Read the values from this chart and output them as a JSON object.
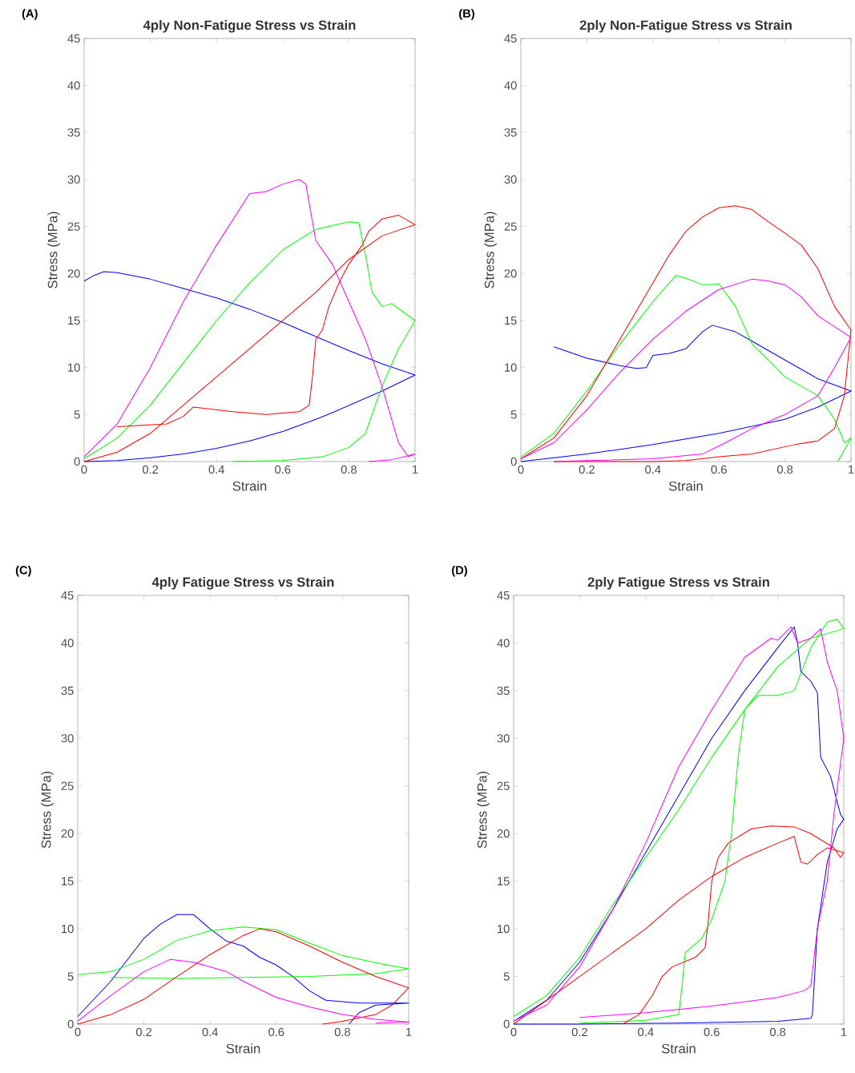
{
  "chart_data": [
    {
      "type": "line",
      "title": "4ply Non-Fatigue Stress vs Strain",
      "xlabel": "Strain",
      "ylabel": "Stress (MPa)",
      "annotations": [
        "(A)"
      ],
      "xlim": [
        0,
        1
      ],
      "ylim": [
        0,
        45
      ],
      "xticks": [
        0,
        0.2,
        0.4,
        0.6,
        0.8,
        1
      ],
      "yticks": [
        0,
        5,
        10,
        15,
        20,
        25,
        30,
        35,
        40,
        45
      ],
      "line_style": "solid",
      "series": [
        {
          "color": "#0000ff",
          "x": [
            0,
            0.03,
            0.06,
            0.1,
            0.2,
            0.3,
            0.4,
            0.5,
            0.6,
            0.72,
            0.8,
            0.9,
            1,
            0.9,
            0.75,
            0.7,
            0.6,
            0.5,
            0.4,
            0.3,
            0.2,
            0.1,
            0
          ],
          "values": [
            19.2,
            19.8,
            20.2,
            20.1,
            19.4,
            18.4,
            17.4,
            16.2,
            14.8,
            13,
            11.8,
            10.4,
            9.2,
            7.5,
            5.2,
            4.5,
            3.2,
            2.2,
            1.4,
            0.8,
            0.4,
            0.1,
            0
          ]
        },
        {
          "color": "#00ff00",
          "x": [
            0,
            0.1,
            0.2,
            0.3,
            0.4,
            0.5,
            0.6,
            0.7,
            0.8,
            0.83,
            0.85,
            0.87,
            0.9,
            0.93,
            0.96,
            1,
            0.95,
            0.9,
            0.85,
            0.8,
            0.72,
            0.6,
            0.45
          ],
          "values": [
            0.3,
            2.5,
            6,
            10.5,
            15,
            19,
            22.5,
            24.7,
            25.5,
            25.4,
            22,
            18,
            16.5,
            16.8,
            16,
            15,
            12,
            8,
            3,
            1.5,
            0.5,
            0.1,
            0
          ]
        },
        {
          "color": "#ff0000",
          "x": [
            0,
            0.1,
            0.2,
            0.35,
            0.4,
            0.5,
            0.6,
            0.7,
            0.8,
            0.9,
            1,
            0.95,
            0.9,
            0.86,
            0.84,
            0.8,
            0.77,
            0.74,
            0.72,
            0.7,
            0.69,
            0.68,
            0.65,
            0.55,
            0.45,
            0.33,
            0.3,
            0.25,
            0.1
          ],
          "values": [
            0,
            1,
            3,
            7.5,
            9,
            12,
            15,
            18,
            21.5,
            24,
            25.2,
            26.2,
            25.8,
            24.5,
            23,
            21,
            19,
            16.5,
            14,
            13,
            9,
            6,
            5.3,
            5,
            5.3,
            5.8,
            4.8,
            4,
            3.7
          ]
        },
        {
          "color": "#ff00ff",
          "x": [
            0,
            0.1,
            0.2,
            0.3,
            0.4,
            0.5,
            0.55,
            0.6,
            0.65,
            0.67,
            0.7,
            0.75,
            0.8,
            0.85,
            0.9,
            0.95,
            0.98,
            1,
            0.93,
            0.86
          ],
          "values": [
            0.5,
            4,
            10,
            17,
            23,
            28.5,
            28.7,
            29.5,
            30,
            29.5,
            23.5,
            21,
            17,
            13,
            8,
            2,
            0.5,
            0.8,
            0.2,
            0
          ]
        }
      ]
    },
    {
      "type": "line",
      "title": "2ply Non-Fatigue Stress vs Strain",
      "xlabel": "Strain",
      "ylabel": "Stress (MPa)",
      "annotations": [
        "(B)"
      ],
      "xlim": [
        0,
        1
      ],
      "ylim": [
        0,
        45
      ],
      "xticks": [
        0,
        0.2,
        0.4,
        0.6,
        0.8,
        1
      ],
      "yticks": [
        0,
        5,
        10,
        15,
        20,
        25,
        30,
        35,
        40,
        45
      ],
      "line_style": "solid",
      "series": [
        {
          "color": "#0000ff",
          "x": [
            0.1,
            0.2,
            0.3,
            0.35,
            0.38,
            0.4,
            0.45,
            0.5,
            0.55,
            0.58,
            0.65,
            0.7,
            0.75,
            0.9,
            1,
            0.9,
            0.8,
            0.6,
            0.4,
            0.2,
            0
          ],
          "values": [
            12.2,
            11,
            10.2,
            9.9,
            10,
            11.3,
            11.5,
            12,
            13.8,
            14.5,
            13.8,
            12.8,
            11.8,
            8.8,
            7.5,
            5.8,
            4.5,
            3,
            1.8,
            0.8,
            0
          ]
        },
        {
          "color": "#00ff00",
          "x": [
            0,
            0.1,
            0.2,
            0.3,
            0.4,
            0.47,
            0.5,
            0.55,
            0.6,
            0.65,
            0.7,
            0.75,
            0.8,
            0.85,
            0.9,
            0.95,
            0.98,
            1,
            0.96
          ],
          "values": [
            0.5,
            3,
            7.5,
            12.5,
            17,
            19.8,
            19.5,
            18.8,
            18.9,
            16.5,
            12.5,
            10.8,
            9,
            8,
            7,
            4.5,
            2,
            2.5,
            0
          ]
        },
        {
          "color": "#ff0000",
          "x": [
            0,
            0.1,
            0.2,
            0.3,
            0.4,
            0.45,
            0.5,
            0.55,
            0.6,
            0.65,
            0.7,
            0.75,
            0.8,
            0.85,
            0.9,
            0.95,
            1,
            0.98,
            0.95,
            0.9,
            0.83,
            0.7,
            0.6,
            0.5,
            0.4,
            0.1
          ],
          "values": [
            0.3,
            2.5,
            7,
            13,
            19,
            22,
            24.5,
            26,
            27,
            27.2,
            26.8,
            25.5,
            24.3,
            23,
            20.5,
            16.5,
            14,
            7,
            3.5,
            2.2,
            1.8,
            0.8,
            0.5,
            0.1,
            0,
            0
          ]
        },
        {
          "color": "#ff00ff",
          "x": [
            0,
            0.1,
            0.2,
            0.3,
            0.4,
            0.5,
            0.6,
            0.7,
            0.75,
            0.8,
            0.85,
            0.9,
            1,
            0.95,
            0.9,
            0.8,
            0.7,
            0.62,
            0.55,
            0.4,
            0.2,
            0.1
          ],
          "values": [
            0.3,
            2,
            5.5,
            9.5,
            13,
            16,
            18.3,
            19.4,
            19.2,
            18.8,
            17.5,
            15.5,
            13.2,
            10,
            7,
            5,
            3.5,
            2,
            0.8,
            0.3,
            0.1,
            0
          ]
        }
      ]
    },
    {
      "type": "line",
      "title": "4ply Fatigue Stress vs Strain",
      "xlabel": "Strain",
      "ylabel": "Stress (MPa)",
      "annotations": [
        "(C)"
      ],
      "xlim": [
        0,
        1
      ],
      "ylim": [
        0,
        45
      ],
      "xticks": [
        0,
        0.2,
        0.4,
        0.6,
        0.8,
        1
      ],
      "yticks": [
        0,
        5,
        10,
        15,
        20,
        25,
        30,
        35,
        40,
        45
      ],
      "line_style": "solid",
      "series": [
        {
          "color": "#0000ff",
          "x": [
            0,
            0.1,
            0.2,
            0.25,
            0.3,
            0.35,
            0.4,
            0.45,
            0.5,
            0.55,
            0.6,
            0.65,
            0.7,
            0.75,
            0.85,
            1,
            0.9,
            0.85,
            0.82
          ],
          "values": [
            0.8,
            4.5,
            9,
            10.5,
            11.5,
            11.5,
            10,
            8.7,
            8.2,
            7,
            6.2,
            5,
            3.5,
            2.5,
            2.2,
            2.2,
            2,
            1.2,
            0
          ]
        },
        {
          "color": "#00ff00",
          "x": [
            0,
            0.1,
            0.2,
            0.3,
            0.4,
            0.5,
            0.6,
            0.7,
            0.8,
            0.92,
            1,
            0.9,
            0.7,
            0.5,
            0.3,
            0.1
          ],
          "values": [
            5.2,
            5.5,
            6.8,
            8.8,
            9.8,
            10.2,
            9.9,
            8.5,
            7.2,
            6.3,
            5.8,
            5.3,
            5,
            4.9,
            4.8,
            4.9
          ]
        },
        {
          "color": "#ff0000",
          "x": [
            0,
            0.1,
            0.2,
            0.3,
            0.4,
            0.5,
            0.55,
            0.6,
            0.7,
            0.8,
            0.9,
            1,
            0.95,
            0.9,
            0.8,
            0.74
          ],
          "values": [
            0,
            1,
            2.6,
            5,
            7.3,
            9.3,
            10,
            9.7,
            8.2,
            6.5,
            5,
            3.8,
            2,
            1,
            0.3,
            0
          ]
        },
        {
          "color": "#ff00ff",
          "x": [
            0,
            0.1,
            0.2,
            0.28,
            0.35,
            0.45,
            0.5,
            0.6,
            0.7,
            0.8,
            0.9,
            1,
            0.9
          ],
          "values": [
            0.3,
            3,
            5.5,
            6.8,
            6.5,
            5.5,
            4.5,
            2.8,
            1.8,
            1,
            0.5,
            0.2,
            0.1
          ]
        }
      ]
    },
    {
      "type": "line",
      "title": "2ply Fatigue Stress vs Strain",
      "xlabel": "Strain",
      "ylabel": "Stress (MPa)",
      "annotations": [
        "(D)"
      ],
      "xlim": [
        0,
        1
      ],
      "ylim": [
        0,
        45
      ],
      "xticks": [
        0,
        0.2,
        0.4,
        0.6,
        0.8,
        1
      ],
      "yticks": [
        0,
        5,
        10,
        15,
        20,
        25,
        30,
        35,
        40,
        45
      ],
      "line_style": "solid",
      "series": [
        {
          "color": "#0000ff",
          "x": [
            0,
            0.1,
            0.2,
            0.3,
            0.4,
            0.5,
            0.6,
            0.7,
            0.8,
            0.85,
            0.86,
            0.87,
            0.9,
            0.92,
            0.93,
            0.96,
            0.99,
            1,
            0.98,
            0.95,
            0.92,
            0.905,
            0.9,
            0.8,
            0.5,
            0.2,
            0
          ],
          "values": [
            0.3,
            2.5,
            6.5,
            12,
            18,
            24,
            30,
            35,
            39.5,
            41.7,
            40,
            37,
            36,
            34.8,
            28,
            26,
            22,
            21.5,
            20.5,
            17,
            10,
            1,
            0.6,
            0.3,
            0.1,
            0,
            0
          ]
        },
        {
          "color": "#00ff00",
          "x": [
            0,
            0.1,
            0.2,
            0.3,
            0.4,
            0.5,
            0.6,
            0.7,
            0.8,
            0.9,
            1,
            0.98,
            0.95,
            0.9,
            0.85,
            0.8,
            0.74,
            0.7,
            0.68,
            0.66,
            0.64,
            0.6,
            0.57,
            0.52,
            0.51,
            0.5,
            0.4,
            0.2
          ],
          "values": [
            0.8,
            3,
            7,
            12.5,
            17.5,
            22.5,
            28,
            33,
            37.5,
            40.5,
            41.5,
            42.5,
            42.2,
            39.5,
            35,
            34.5,
            34.5,
            33,
            28,
            20,
            15,
            11,
            9,
            7.5,
            4,
            1,
            0.4,
            0.1
          ]
        },
        {
          "color": "#ff0000",
          "x": [
            0,
            0.1,
            0.2,
            0.3,
            0.4,
            0.5,
            0.6,
            0.7,
            0.8,
            0.85,
            0.87,
            0.89,
            0.92,
            0.95,
            1,
            0.99,
            0.97,
            0.9,
            0.85,
            0.78,
            0.72,
            0.65,
            0.62,
            0.6,
            0.59,
            0.58,
            0.55,
            0.48,
            0.45,
            0.42,
            0.38,
            0.33
          ],
          "values": [
            0,
            2.5,
            5,
            7.5,
            10,
            13,
            15.5,
            17.5,
            19,
            19.7,
            17,
            16.8,
            17.8,
            18.5,
            18,
            17.5,
            18.5,
            20,
            20.7,
            20.8,
            20.5,
            19,
            17.5,
            15,
            11,
            8,
            7,
            6,
            5,
            3,
            1,
            0
          ]
        },
        {
          "color": "#ff00ff",
          "x": [
            0,
            0.1,
            0.2,
            0.3,
            0.4,
            0.45,
            0.5,
            0.6,
            0.7,
            0.78,
            0.8,
            0.84,
            0.86,
            0.9,
            0.93,
            0.95,
            0.98,
            1,
            0.97,
            0.95,
            0.92,
            0.9,
            0.88,
            0.8,
            0.6,
            0.4,
            0.2
          ],
          "values": [
            0.3,
            2,
            6,
            12,
            19,
            23,
            27,
            33,
            38.5,
            40.5,
            40.3,
            41.7,
            40,
            40.5,
            41.5,
            38,
            35,
            30,
            22,
            15,
            10,
            4,
            3.5,
            2.8,
            1.9,
            1.2,
            0.7
          ]
        }
      ]
    }
  ]
}
